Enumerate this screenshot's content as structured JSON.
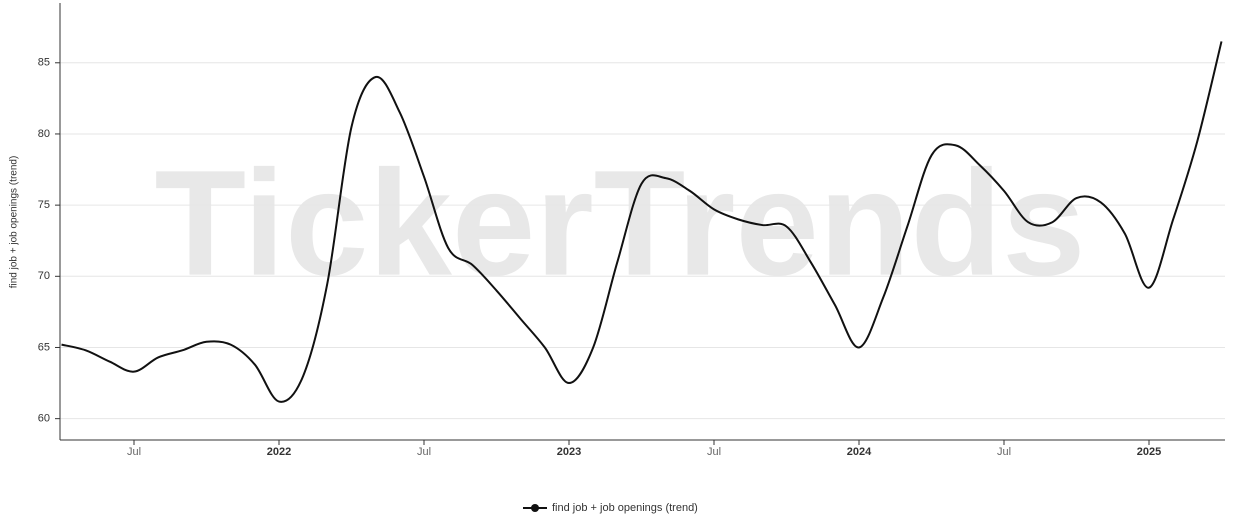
{
  "chart_data": {
    "type": "line",
    "watermark": "TickerTrends",
    "y_label": "find job + job openings  (trend)",
    "x": [
      "2021-04",
      "2021-05",
      "2021-06",
      "2021-07",
      "2021-08",
      "2021-09",
      "2021-10",
      "2021-11",
      "2021-12",
      "2022-01",
      "2022-02",
      "2022-03",
      "2022-04",
      "2022-05",
      "2022-06",
      "2022-07",
      "2022-08",
      "2022-09",
      "2022-10",
      "2022-11",
      "2022-12",
      "2023-01",
      "2023-02",
      "2023-03",
      "2023-04",
      "2023-05",
      "2023-06",
      "2023-07",
      "2023-08",
      "2023-09",
      "2023-10",
      "2023-11",
      "2023-12",
      "2024-01",
      "2024-02",
      "2024-03",
      "2024-04",
      "2024-05",
      "2024-06",
      "2024-07",
      "2024-08",
      "2024-09",
      "2024-10",
      "2024-11",
      "2024-12",
      "2025-01",
      "2025-02",
      "2025-03",
      "2025-04"
    ],
    "series": [
      {
        "name": "find job + job openings  (trend)",
        "color": "#111111",
        "values": [
          65.2,
          64.8,
          64.0,
          63.3,
          64.3,
          64.8,
          65.4,
          65.2,
          63.8,
          61.2,
          63.0,
          69.5,
          80.5,
          84.0,
          81.5,
          77.0,
          72.0,
          70.8,
          69.0,
          67.0,
          65.0,
          62.5,
          65.0,
          71.0,
          76.5,
          76.9,
          76.0,
          74.7,
          74.0,
          73.6,
          73.5,
          71.0,
          68.0,
          65.0,
          68.5,
          73.5,
          78.5,
          79.2,
          77.8,
          76.0,
          73.8,
          73.8,
          75.5,
          75.2,
          73.0,
          69.2,
          74.0,
          79.5,
          86.5
        ]
      }
    ],
    "xlim": [
      "2021-04",
      "2025-04"
    ],
    "xticks": [
      {
        "value": "2021-07",
        "label": "Jul"
      },
      {
        "value": "2022-01",
        "label": "2022"
      },
      {
        "value": "2022-07",
        "label": "Jul"
      },
      {
        "value": "2023-01",
        "label": "2023"
      },
      {
        "value": "2023-07",
        "label": "Jul"
      },
      {
        "value": "2024-01",
        "label": "2024"
      },
      {
        "value": "2024-07",
        "label": "Jul"
      },
      {
        "value": "2025-01",
        "label": "2025"
      }
    ],
    "ylim": [
      58.5,
      89.2
    ],
    "yticks": [
      60,
      65,
      70,
      75,
      80,
      85
    ],
    "grid": true,
    "legend": "bottom"
  }
}
